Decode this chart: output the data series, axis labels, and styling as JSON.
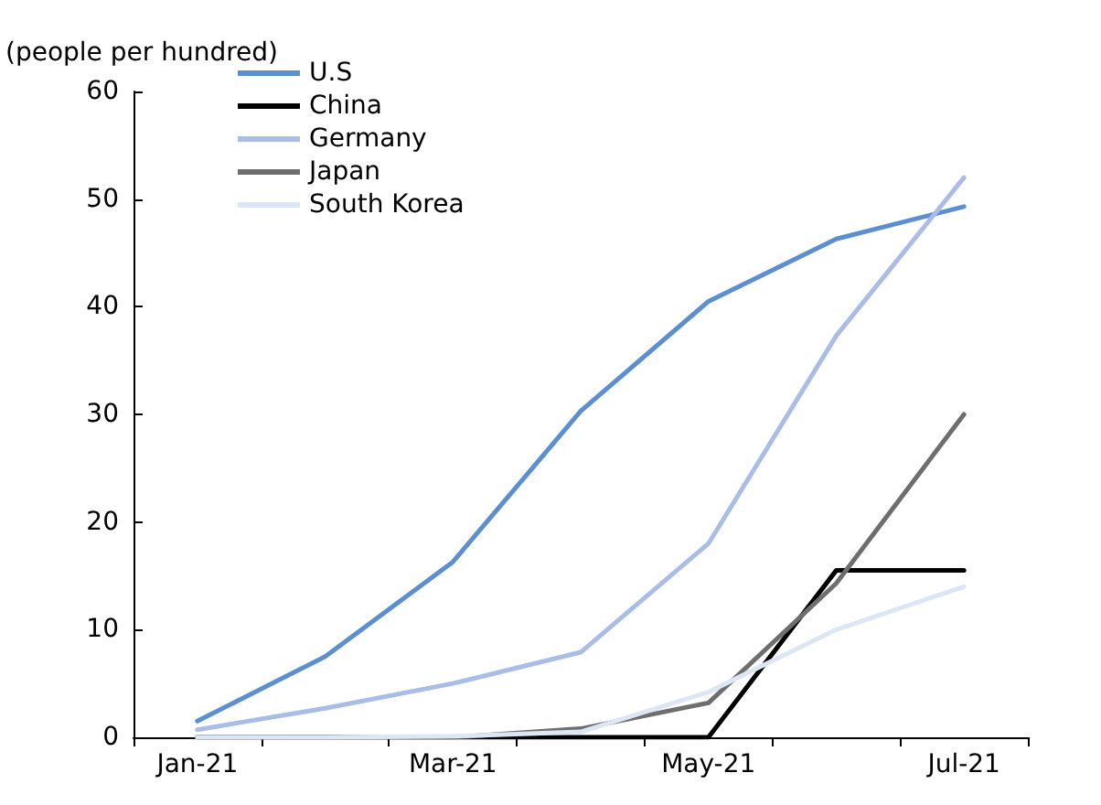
{
  "chart_data": {
    "type": "line",
    "ylabel": "(people per hundred)",
    "categories": [
      "Jan-21",
      null,
      "Mar-21",
      null,
      "May-21",
      null,
      "Jul-21"
    ],
    "ylim": [
      0,
      60
    ],
    "yticks": [
      0,
      10,
      20,
      30,
      40,
      50,
      60
    ],
    "grid": false,
    "legend": "top left",
    "marker": "none",
    "line_style": "solid",
    "series": [
      {
        "name": "U.S",
        "color": "#5b8fd0",
        "values": [
          1.5,
          7.5,
          16.3,
          30.3,
          40.5,
          46.3,
          49.3
        ]
      },
      {
        "name": "China",
        "color": "#000000",
        "values": [
          0,
          0,
          0,
          0,
          0,
          15.5,
          15.5
        ]
      },
      {
        "name": "Germany",
        "color": "#a9bde6",
        "values": [
          0.7,
          2.7,
          5,
          7.9,
          18,
          37.3,
          52
        ]
      },
      {
        "name": "Japan",
        "color": "#6e6e6e",
        "values": [
          0,
          0,
          0,
          0.8,
          3.2,
          14.3,
          30
        ]
      },
      {
        "name": "South Korea",
        "color": "#dde6f5",
        "values": [
          0,
          0,
          0.1,
          0.5,
          4.2,
          10,
          14
        ]
      }
    ]
  }
}
